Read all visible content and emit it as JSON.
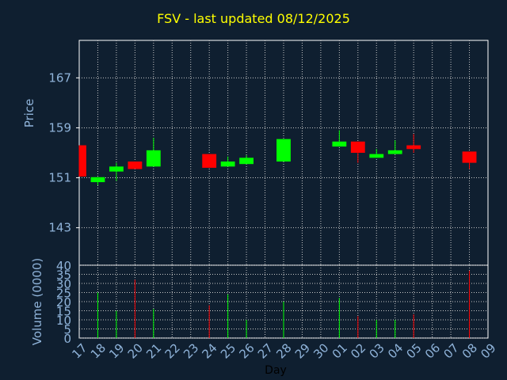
{
  "title": "FSV - last updated 08/12/2025",
  "chart_data": [
    {
      "type": "candlestick",
      "ylabel": "Price",
      "ylim": [
        137,
        173
      ],
      "yticks": [
        143,
        151,
        159,
        167
      ],
      "grid": true,
      "x": [
        "17",
        "18",
        "19",
        "20",
        "21",
        "22",
        "23",
        "24",
        "25",
        "26",
        "27",
        "28",
        "29",
        "30",
        "01",
        "02",
        "03",
        "04",
        "05",
        "06",
        "07",
        "08",
        "09"
      ],
      "candles": [
        {
          "day": "17",
          "open": 156.2,
          "close": 151.2,
          "high": 156.2,
          "low": 151.2,
          "dir": "down"
        },
        {
          "day": "18",
          "open": 150.3,
          "close": 151.1,
          "high": 151.1,
          "low": 149.8,
          "dir": "up"
        },
        {
          "day": "19",
          "open": 152.0,
          "close": 152.8,
          "high": 153.4,
          "low": 150.5,
          "dir": "up"
        },
        {
          "day": "20",
          "open": 153.6,
          "close": 152.4,
          "high": 153.6,
          "low": 152.4,
          "dir": "down"
        },
        {
          "day": "21",
          "open": 152.8,
          "close": 155.4,
          "high": 157.4,
          "low": 152.8,
          "dir": "up"
        },
        {
          "day": "24",
          "open": 154.8,
          "close": 152.6,
          "high": 154.8,
          "low": 152.6,
          "dir": "down"
        },
        {
          "day": "25",
          "open": 152.8,
          "close": 153.6,
          "high": 154.4,
          "low": 152.8,
          "dir": "up"
        },
        {
          "day": "26",
          "open": 153.2,
          "close": 154.2,
          "high": 154.6,
          "low": 153.2,
          "dir": "up"
        },
        {
          "day": "28",
          "open": 153.6,
          "close": 157.2,
          "high": 157.2,
          "low": 153.6,
          "dir": "up"
        },
        {
          "day": "01",
          "open": 156.0,
          "close": 156.8,
          "high": 158.6,
          "low": 156.0,
          "dir": "up"
        },
        {
          "day": "02",
          "open": 156.8,
          "close": 155.0,
          "high": 156.8,
          "low": 153.4,
          "dir": "down"
        },
        {
          "day": "03",
          "open": 154.2,
          "close": 154.8,
          "high": 155.6,
          "low": 154.2,
          "dir": "up"
        },
        {
          "day": "04",
          "open": 154.8,
          "close": 155.4,
          "high": 157.0,
          "low": 154.8,
          "dir": "up"
        },
        {
          "day": "05",
          "open": 156.2,
          "close": 155.6,
          "high": 158.0,
          "low": 155.0,
          "dir": "down"
        },
        {
          "day": "08",
          "open": 155.2,
          "close": 153.4,
          "high": 155.2,
          "low": 152.4,
          "dir": "down"
        }
      ]
    },
    {
      "type": "bar",
      "ylabel": "Volume (0000)",
      "xlabel": "Day",
      "ylim": [
        0,
        40
      ],
      "yticks": [
        0,
        5,
        10,
        15,
        20,
        25,
        30,
        35,
        40
      ],
      "grid": true,
      "x": [
        "17",
        "18",
        "19",
        "20",
        "21",
        "22",
        "23",
        "24",
        "25",
        "26",
        "27",
        "28",
        "29",
        "30",
        "01",
        "02",
        "03",
        "04",
        "05",
        "06",
        "07",
        "08",
        "09"
      ],
      "bars": [
        {
          "day": "18",
          "value": 25,
          "dir": "up"
        },
        {
          "day": "19",
          "value": 15,
          "dir": "up"
        },
        {
          "day": "20",
          "value": 32,
          "dir": "down"
        },
        {
          "day": "21",
          "value": 16,
          "dir": "up"
        },
        {
          "day": "24",
          "value": 18,
          "dir": "down"
        },
        {
          "day": "25",
          "value": 24,
          "dir": "up"
        },
        {
          "day": "26",
          "value": 10,
          "dir": "up"
        },
        {
          "day": "28",
          "value": 20,
          "dir": "up"
        },
        {
          "day": "01",
          "value": 22,
          "dir": "up"
        },
        {
          "day": "02",
          "value": 12,
          "dir": "down"
        },
        {
          "day": "03",
          "value": 10,
          "dir": "up"
        },
        {
          "day": "04",
          "value": 10,
          "dir": "up"
        },
        {
          "day": "05",
          "value": 13,
          "dir": "down"
        },
        {
          "day": "08",
          "value": 37,
          "dir": "down"
        }
      ]
    }
  ],
  "colors": {
    "background": "#0f1f30",
    "plot": "#0f1f30",
    "up": "#00ff00",
    "down": "#ff0000",
    "grid": "#c8c8c8",
    "axis_text": "#8fb3d9",
    "title": "#ffff00",
    "xlabel": "#000000"
  }
}
